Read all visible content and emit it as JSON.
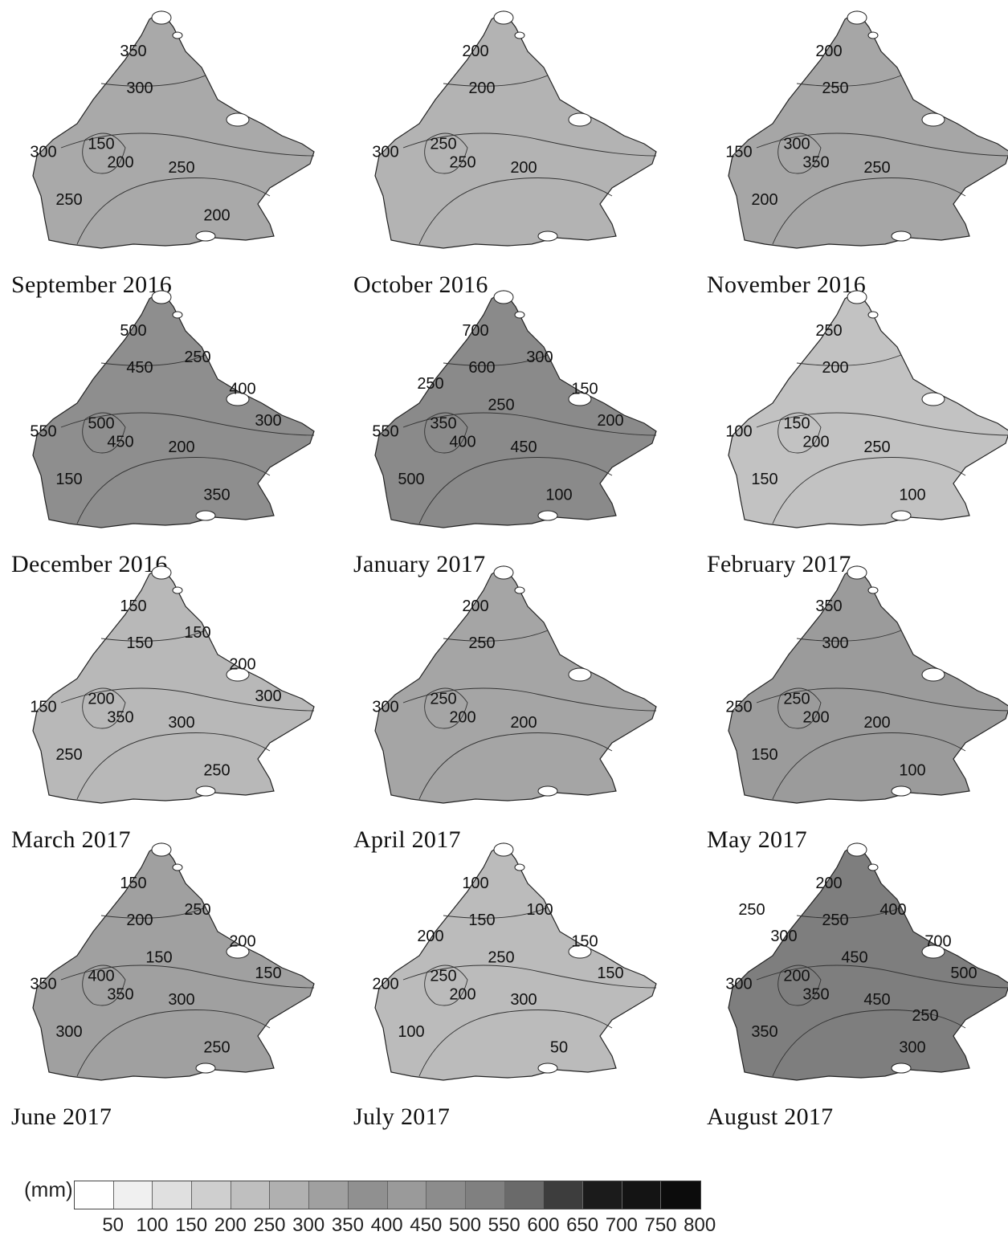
{
  "panels": [
    {
      "caption": "September 2016",
      "labels": [
        "350",
        "300",
        "300",
        "150",
        "200",
        "250",
        "250",
        "200"
      ],
      "shade": "#a9a9a9"
    },
    {
      "caption": "October 2016",
      "labels": [
        "200",
        "200",
        "300",
        "250",
        "250",
        "200"
      ],
      "shade": "#b3b3b3"
    },
    {
      "caption": "November 2016",
      "labels": [
        "200",
        "250",
        "150",
        "300",
        "350",
        "250",
        "200"
      ],
      "shade": "#a6a6a6"
    },
    {
      "caption": "December 2016",
      "labels": [
        "500",
        "450",
        "550",
        "500",
        "450",
        "200",
        "150",
        "350",
        "400",
        "300",
        "250"
      ],
      "shade": "#8e8e8e"
    },
    {
      "caption": "January 2017",
      "labels": [
        "700",
        "600",
        "550",
        "350",
        "400",
        "450",
        "500",
        "100",
        "150",
        "200",
        "300",
        "250",
        "250"
      ],
      "shade": "#8a8a8a"
    },
    {
      "caption": "February 2017",
      "labels": [
        "250",
        "200",
        "100",
        "150",
        "200",
        "250",
        "150",
        "100"
      ],
      "shade": "#c2c2c2"
    },
    {
      "caption": "March 2017",
      "labels": [
        "150",
        "150",
        "150",
        "200",
        "350",
        "300",
        "250",
        "250",
        "200",
        "300",
        "150"
      ],
      "shade": "#b8b8b8"
    },
    {
      "caption": "April 2017",
      "labels": [
        "200",
        "250",
        "300",
        "250",
        "200",
        "200"
      ],
      "shade": "#a5a5a5"
    },
    {
      "caption": "May 2017",
      "labels": [
        "350",
        "300",
        "250",
        "250",
        "200",
        "200",
        "150",
        "100"
      ],
      "shade": "#9b9b9b"
    },
    {
      "caption": "June 2017",
      "labels": [
        "150",
        "200",
        "350",
        "400",
        "350",
        "300",
        "300",
        "250",
        "200",
        "150",
        "250",
        "150"
      ],
      "shade": "#a0a0a0"
    },
    {
      "caption": "July 2017",
      "labels": [
        "100",
        "150",
        "200",
        "250",
        "200",
        "300",
        "100",
        "50",
        "150",
        "150",
        "100",
        "250",
        "200"
      ],
      "shade": "#bbbbbb"
    },
    {
      "caption": "August 2017",
      "labels": [
        "200",
        "250",
        "300",
        "200",
        "350",
        "450",
        "350",
        "300",
        "700",
        "500",
        "400",
        "450",
        "300",
        "250",
        "250"
      ],
      "shade": "#7e7e7e"
    }
  ],
  "legend": {
    "unit": "(mm)",
    "ticks": [
      "50",
      "100",
      "150",
      "200",
      "250",
      "300",
      "350",
      "400",
      "450",
      "500",
      "550",
      "600",
      "650",
      "700",
      "750",
      "800"
    ],
    "colors": [
      "#ffffff",
      "#f0f0f0",
      "#e0e0e0",
      "#cfcfcf",
      "#bfbfbf",
      "#b0b0b0",
      "#a0a0a0",
      "#909090",
      "#9a9a9a",
      "#8c8c8c",
      "#808080",
      "#6a6a6a",
      "#3d3d3d",
      "#1b1b1b",
      "#141414",
      "#0c0c0c"
    ]
  }
}
